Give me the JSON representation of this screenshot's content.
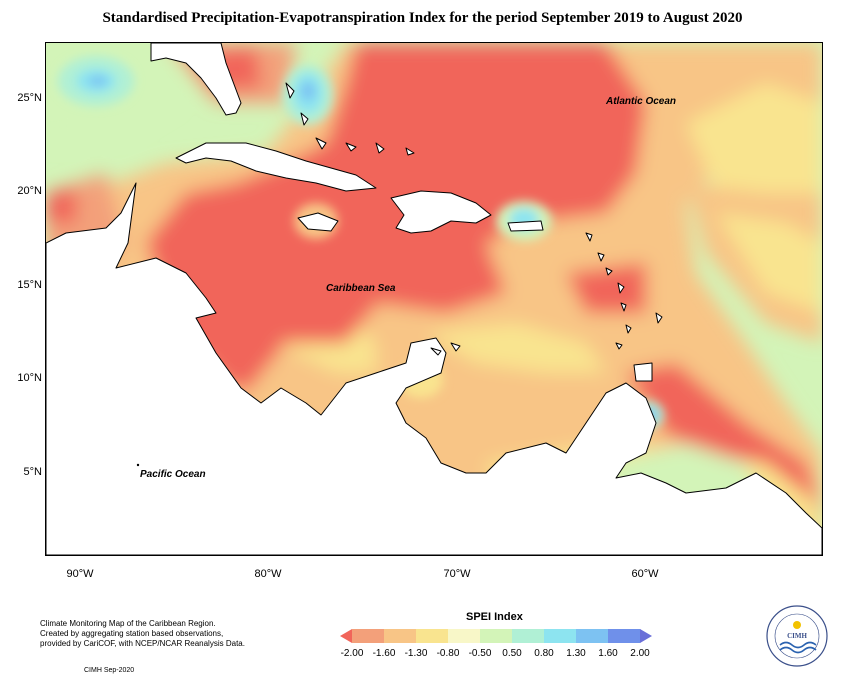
{
  "title": "Standardised Precipitation-Evapotranspiration Index for the period September 2019 to August 2020",
  "map": {
    "ocean_labels": {
      "atlantic": "Atlantic Ocean",
      "caribbean": "Caribbean Sea",
      "pacific": "Pacific Ocean"
    },
    "lat_labels": [
      "25°N",
      "20°N",
      "15°N",
      "10°N",
      "5°N"
    ],
    "lon_labels": [
      "90°W",
      "80°W",
      "70°W",
      "60°W"
    ],
    "land_color": "#ffffff",
    "coast_color": "#000000"
  },
  "legend": {
    "title": "SPEI Index",
    "ticks": [
      "-2.00",
      "-1.60",
      "-1.30",
      "-0.80",
      "-0.50",
      "0.50",
      "0.80",
      "1.30",
      "1.60",
      "2.00"
    ],
    "colors": [
      "#f1655a",
      "#f3a07a",
      "#f8c586",
      "#f9e48f",
      "#f8f7c8",
      "#d3f4b8",
      "#b0f0d5",
      "#8de4f0",
      "#7dc2f2",
      "#6f90ea",
      "#6a6fd8"
    ]
  },
  "credits": {
    "line1": "Climate Monitoring Map of the Caribbean Region.",
    "line2": "Created by aggregating station based observations,",
    "line3": "provided by CariCOF, with NCEP/NCAR Reanalysis Data.",
    "signature": "CIMH Sep-2020"
  },
  "logo": {
    "text": "CIMH"
  }
}
